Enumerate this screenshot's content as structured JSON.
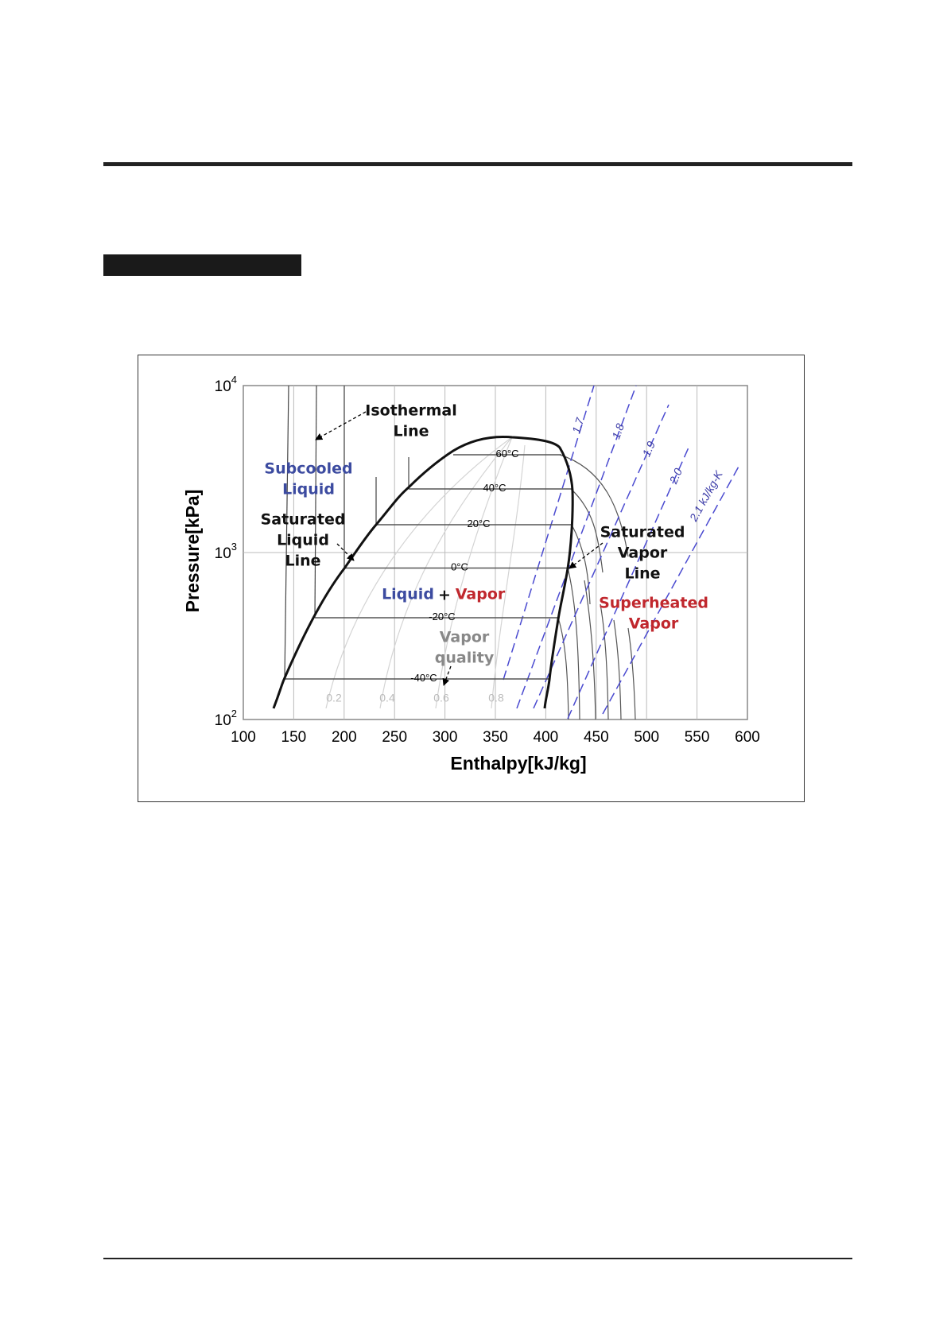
{
  "figure": {
    "y_axis_title": "Pressure[kPa]",
    "x_axis_title": "Enthalpy[kJ/kg]",
    "x_ticks": [
      "100",
      "150",
      "200",
      "250",
      "300",
      "350",
      "400",
      "450",
      "500",
      "550",
      "600"
    ],
    "y_ticks": [
      {
        "base": "10",
        "exponent": "4"
      },
      {
        "base": "10",
        "exponent": "3"
      },
      {
        "base": "10",
        "exponent": "2"
      }
    ],
    "isotherm_labels": [
      "60°C",
      "40°C",
      "20°C",
      "0°C",
      "-20°C",
      "-40°C"
    ],
    "quality_labels": [
      "0.2",
      "0.4",
      "0.6",
      "0.8"
    ],
    "entropy_labels": [
      "1.7",
      "1.8",
      "1.9",
      "2.0",
      "2.1 kJ/kg-K"
    ],
    "annotations": {
      "isothermal_line": [
        "Isothermal",
        "Line"
      ],
      "subcooled_liquid": [
        "Subcooled",
        "Liquid"
      ],
      "saturated_liquid_line": [
        "Saturated",
        "Liquid",
        "Line"
      ],
      "two_phase": [
        "Liquid",
        "+",
        "Vapor"
      ],
      "vapor_quality": [
        "Vapor",
        "quality"
      ],
      "saturated_vapor_line": [
        "Saturated",
        "Vapor",
        "Line"
      ],
      "superheated_vapor": [
        "Superheated",
        "Vapor"
      ]
    }
  }
}
